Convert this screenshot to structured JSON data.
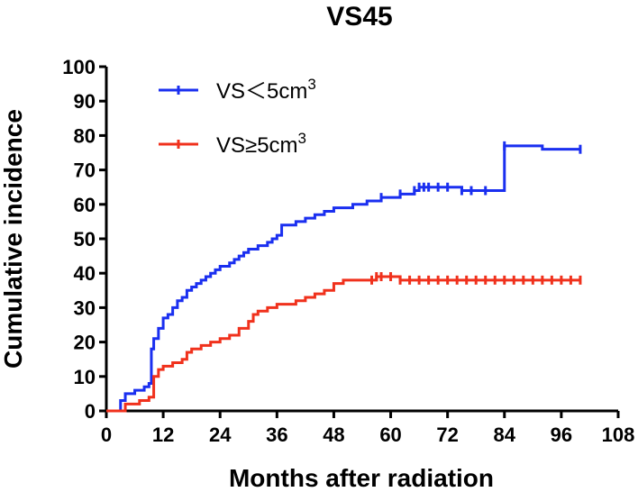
{
  "chart_data": {
    "type": "line",
    "subtype": "step",
    "title": "VS45",
    "xlabel": "Months after radiation",
    "ylabel": "Cumulative incidence",
    "xlim": [
      0,
      108
    ],
    "ylim": [
      0,
      100
    ],
    "xticks": [
      0,
      12,
      24,
      36,
      48,
      60,
      72,
      84,
      96,
      108
    ],
    "yticks": [
      0,
      10,
      20,
      30,
      40,
      50,
      60,
      70,
      80,
      90,
      100
    ],
    "grid": false,
    "legend_position": "top-left",
    "series": [
      {
        "name": "VS＜5cm",
        "name_superscript": "3",
        "color": "#1a2ff0",
        "points": [
          [
            0,
            0
          ],
          [
            2,
            0
          ],
          [
            3,
            3
          ],
          [
            4,
            5
          ],
          [
            6,
            6
          ],
          [
            8,
            7
          ],
          [
            9,
            8
          ],
          [
            9.5,
            18
          ],
          [
            10,
            21
          ],
          [
            11,
            24
          ],
          [
            12,
            27
          ],
          [
            13,
            28
          ],
          [
            14,
            30
          ],
          [
            15,
            32
          ],
          [
            16,
            33
          ],
          [
            17,
            35
          ],
          [
            18,
            36
          ],
          [
            19,
            37
          ],
          [
            20,
            38
          ],
          [
            21,
            39
          ],
          [
            22,
            40
          ],
          [
            23,
            41
          ],
          [
            24,
            42
          ],
          [
            25,
            42
          ],
          [
            26,
            43
          ],
          [
            27,
            44
          ],
          [
            28,
            45
          ],
          [
            29,
            46
          ],
          [
            30,
            47
          ],
          [
            32,
            48
          ],
          [
            34,
            49
          ],
          [
            35,
            50
          ],
          [
            36,
            51
          ],
          [
            37,
            54
          ],
          [
            38,
            54
          ],
          [
            40,
            55
          ],
          [
            42,
            56
          ],
          [
            44,
            57
          ],
          [
            46,
            58
          ],
          [
            48,
            59
          ],
          [
            50,
            59
          ],
          [
            52,
            60
          ],
          [
            55,
            61
          ],
          [
            58,
            62
          ],
          [
            62,
            63
          ],
          [
            65,
            64
          ],
          [
            66,
            65
          ],
          [
            70,
            65
          ],
          [
            75,
            64
          ],
          [
            84,
            64
          ],
          [
            84,
            77
          ],
          [
            92,
            76
          ],
          [
            100,
            76
          ]
        ],
        "censor_x": [
          58,
          62,
          65,
          66,
          67,
          68,
          70,
          72,
          75,
          77,
          80,
          84,
          100
        ]
      },
      {
        "name": "VS≥5cm",
        "name_superscript": "3",
        "color": "#f0311c",
        "points": [
          [
            0,
            0
          ],
          [
            3,
            0
          ],
          [
            4,
            2
          ],
          [
            5,
            2
          ],
          [
            7,
            3
          ],
          [
            8,
            3
          ],
          [
            9,
            4
          ],
          [
            10,
            10
          ],
          [
            11,
            12
          ],
          [
            12,
            13
          ],
          [
            14,
            14
          ],
          [
            15,
            14
          ],
          [
            16,
            15
          ],
          [
            17,
            17
          ],
          [
            18,
            18
          ],
          [
            20,
            19
          ],
          [
            22,
            20
          ],
          [
            24,
            21
          ],
          [
            26,
            22
          ],
          [
            28,
            24
          ],
          [
            30,
            26
          ],
          [
            31,
            28
          ],
          [
            32,
            29
          ],
          [
            34,
            30
          ],
          [
            36,
            31
          ],
          [
            38,
            31
          ],
          [
            40,
            32
          ],
          [
            42,
            33
          ],
          [
            44,
            34
          ],
          [
            46,
            35
          ],
          [
            48,
            37
          ],
          [
            50,
            38
          ],
          [
            55,
            38
          ],
          [
            57,
            39
          ],
          [
            60,
            39
          ],
          [
            62,
            38
          ],
          [
            100,
            38
          ]
        ],
        "censor_x": [
          56,
          57,
          58,
          60,
          62,
          64,
          66,
          68,
          70,
          72,
          74,
          76,
          78,
          80,
          82,
          84,
          86,
          88,
          90,
          92,
          94,
          96,
          98,
          100
        ]
      }
    ]
  }
}
